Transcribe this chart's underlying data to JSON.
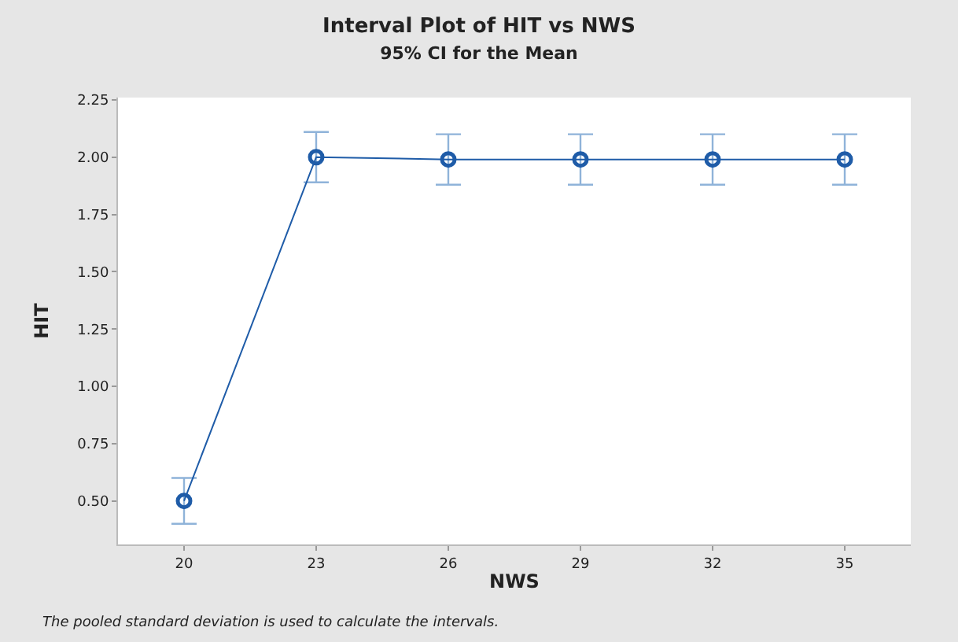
{
  "chart_data": {
    "type": "line",
    "title": "Interval Plot of HIT vs NWS",
    "subtitle": "95% CI for the Mean",
    "xlabel": "NWS",
    "ylabel": "HIT",
    "categories": [
      "20",
      "23",
      "26",
      "29",
      "32",
      "35"
    ],
    "series": [
      {
        "color": "#1f5ca8",
        "values": [
          0.5,
          2.0,
          1.99,
          1.99,
          1.99,
          1.99
        ],
        "errors": [
          [
            0.4,
            0.6
          ],
          [
            1.89,
            2.11
          ],
          [
            1.88,
            2.1
          ],
          [
            1.88,
            2.1
          ],
          [
            1.88,
            2.1
          ],
          [
            1.88,
            2.1
          ]
        ]
      }
    ],
    "ylim": [
      0.31,
      2.26
    ],
    "yticks": [
      {
        "value": 0.5,
        "label": "0.50"
      },
      {
        "value": 0.75,
        "label": "0.75"
      },
      {
        "value": 1.0,
        "label": "1.00"
      },
      {
        "value": 1.25,
        "label": "1.25"
      },
      {
        "value": 1.5,
        "label": "1.50"
      },
      {
        "value": 1.75,
        "label": "1.75"
      },
      {
        "value": 2.0,
        "label": "2.00"
      },
      {
        "value": 2.25,
        "label": "2.25"
      }
    ],
    "marker": "circle",
    "line_style": "solid",
    "annotations": [
      "The pooled standard deviation is used to calculate the intervals."
    ]
  }
}
